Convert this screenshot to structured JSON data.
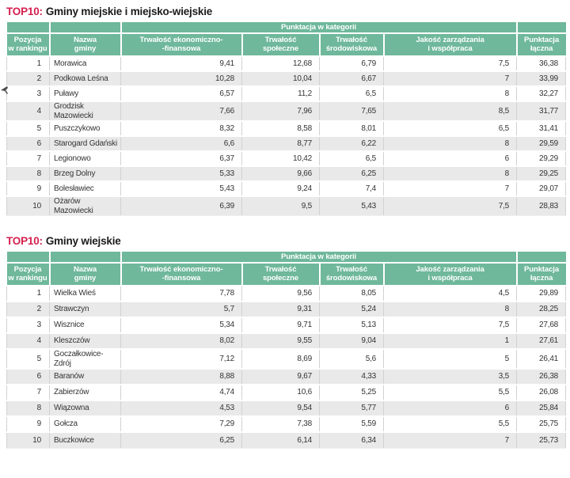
{
  "colors": {
    "header_green": "#6fb89b",
    "title_red": "#d4204e",
    "row_alt": "#e9e9e9",
    "grid_line": "#d2d2d2",
    "text": "#333333"
  },
  "band_label": "Punktacja w kategorii",
  "columns": [
    "Pozycja\nw rankingu",
    "Nazwa\ngminy",
    "Trwałość ekonomiczno-\n-finansowa",
    "Trwałość\nspołeczne",
    "Trwałość\nśrodowiskowa",
    "Jakość zarządzania\ni współpraca",
    "Punktacja\nłączna"
  ],
  "tables": [
    {
      "title_prefix": "TOP10:",
      "title": "Gminy miejskie i miejsko-wiejskie",
      "rows": [
        [
          "1",
          "Morawica",
          "9,41",
          "12,68",
          "6,79",
          "7,5",
          "36,38"
        ],
        [
          "2",
          "Podkowa Leśna",
          "10,28",
          "10,04",
          "6,67",
          "7",
          "33,99"
        ],
        [
          "3",
          "Puławy",
          "6,57",
          "11,2",
          "6,5",
          "8",
          "32,27"
        ],
        [
          "4",
          "Grodzisk Mazowiecki",
          "7,66",
          "7,96",
          "7,65",
          "8,5",
          "31,77"
        ],
        [
          "5",
          "Puszczykowo",
          "8,32",
          "8,58",
          "8,01",
          "6,5",
          "31,41"
        ],
        [
          "6",
          "Starogard Gdański",
          "6,6",
          "8,77",
          "6,22",
          "8",
          "29,59"
        ],
        [
          "7",
          "Legionowo",
          "6,37",
          "10,42",
          "6,5",
          "6",
          "29,29"
        ],
        [
          "8",
          "Brzeg Dolny",
          "5,33",
          "9,66",
          "6,25",
          "8",
          "29,25"
        ],
        [
          "9",
          "Bolesławiec",
          "5,43",
          "9,24",
          "7,4",
          "7",
          "29,07"
        ],
        [
          "10",
          "Ożarów Mazowiecki",
          "6,39",
          "9,5",
          "5,43",
          "7,5",
          "28,83"
        ]
      ]
    },
    {
      "title_prefix": "TOP10:",
      "title": "Gminy wiejskie",
      "rows": [
        [
          "1",
          "Wielka Wieś",
          "7,78",
          "9,56",
          "8,05",
          "4,5",
          "29,89"
        ],
        [
          "2",
          "Strawczyn",
          "5,7",
          "9,31",
          "5,24",
          "8",
          "28,25"
        ],
        [
          "3",
          "Wisznice",
          "5,34",
          "9,71",
          "5,13",
          "7,5",
          "27,68"
        ],
        [
          "4",
          "Kleszczów",
          "8,02",
          "9,55",
          "9,04",
          "1",
          "27,61"
        ],
        [
          "5",
          "Goczałkowice-Zdrój",
          "7,12",
          "8,69",
          "5,6",
          "5",
          "26,41"
        ],
        [
          "6",
          "Baranów",
          "8,88",
          "9,67",
          "4,33",
          "3,5",
          "26,38"
        ],
        [
          "7",
          "Zabierzów",
          "4,74",
          "10,6",
          "5,25",
          "5,5",
          "26,08"
        ],
        [
          "8",
          "Wiązowna",
          "4,53",
          "9,54",
          "5,77",
          "6",
          "25,84"
        ],
        [
          "9",
          "Gołcza",
          "7,29",
          "7,38",
          "5,59",
          "5,5",
          "25,75"
        ],
        [
          "10",
          "Buczkowice",
          "6,25",
          "6,14",
          "6,34",
          "7",
          "25,73"
        ]
      ]
    }
  ]
}
